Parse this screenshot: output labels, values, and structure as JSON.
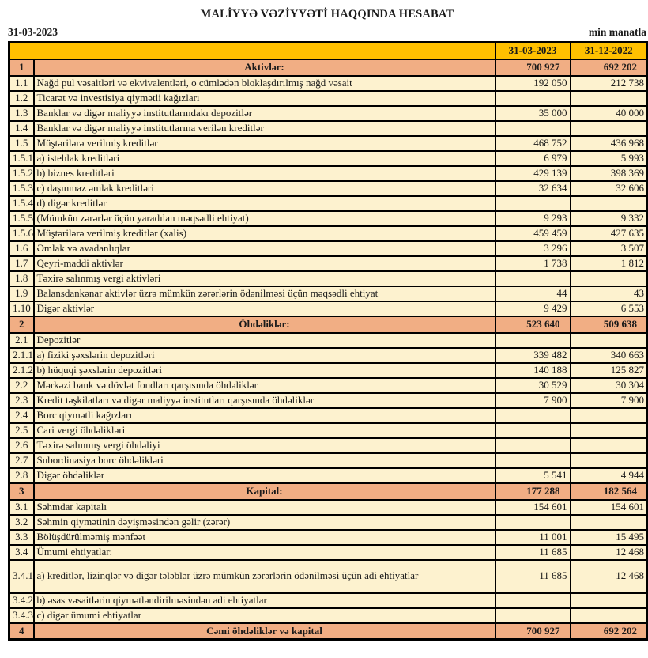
{
  "report": {
    "title": "MALİYYƏ VƏZİYYƏTİ HAQQINDA HESABAT",
    "date_label": "31-03-2023",
    "unit_label": "min manatla",
    "columns": [
      "31-03-2023",
      "31-12-2022"
    ],
    "colors": {
      "header_bg": "#FFC000",
      "section_bg": "#F1AE84",
      "row_bg": "#FDF2CF",
      "border": "#000000"
    },
    "rows": [
      {
        "no": "1",
        "label": "Aktivlər:",
        "v1": "700 927",
        "v2": "692 202",
        "type": "section"
      },
      {
        "no": "1.1",
        "label": "Nağd pul vəsaitləri və  ekvivalentləri, o cümlədən bloklaşdırılmış nağd vəsait",
        "v1": "192 050",
        "v2": "212 738",
        "type": "normal"
      },
      {
        "no": "1.2",
        "label": "Ticarət və investisiya qiymətli kağızları",
        "v1": "",
        "v2": "",
        "type": "normal"
      },
      {
        "no": "1.3",
        "label": "Banklar və digər maliyyə institutlarındakı depozitlər",
        "v1": "35 000",
        "v2": "40 000",
        "type": "normal"
      },
      {
        "no": "1.4",
        "label": "Banklar və digər maliyyə institutlarına verilən kreditlər",
        "v1": "",
        "v2": "",
        "type": "normal"
      },
      {
        "no": "1.5",
        "label": "Müştərilərə verilmiş kreditlər",
        "v1": "468 752",
        "v2": "436 968",
        "type": "normal"
      },
      {
        "no": "1.5.1",
        "label": "a) istehlak kreditləri",
        "v1": "6 979",
        "v2": "5 993",
        "type": "normal"
      },
      {
        "no": "1.5.2",
        "label": "b) biznes kreditləri",
        "v1": "429 139",
        "v2": "398 369",
        "type": "normal"
      },
      {
        "no": "1.5.3",
        "label": "c) daşınmaz əmlak kreditləri",
        "v1": "32 634",
        "v2": "32 606",
        "type": "normal"
      },
      {
        "no": "1.5.4",
        "label": "d) digər kreditlər",
        "v1": "",
        "v2": "",
        "type": "normal"
      },
      {
        "no": "1.5.5",
        "label": "(Mümkün zərərlər üçün yaradılan məqsədli ehtiyat)",
        "v1": "9 293",
        "v2": "9 332",
        "type": "normal"
      },
      {
        "no": "1.5.6",
        "label": "Müştərilərə verilmiş kreditlər (xalis)",
        "v1": "459 459",
        "v2": "427 635",
        "type": "normal"
      },
      {
        "no": "1.6",
        "label": "Əmlak və avadanlıqlar",
        "v1": "3 296",
        "v2": "3 507",
        "type": "normal"
      },
      {
        "no": "1.7",
        "label": "Qeyri-maddi aktivlər",
        "v1": "1 738",
        "v2": "1 812",
        "type": "normal"
      },
      {
        "no": "1.8",
        "label": "Təxirə salınmış vergi aktivləri",
        "v1": "",
        "v2": "",
        "type": "normal"
      },
      {
        "no": "1.9",
        "label": "Balansdankənar aktivlər üzrə mümkün zərərlərin ödənilməsi üçün məqsədli ehtiyat",
        "v1": "44",
        "v2": "43",
        "type": "normal"
      },
      {
        "no": "1.10",
        "label": "Digər aktivlər",
        "v1": "9 429",
        "v2": "6 553",
        "type": "normal"
      },
      {
        "no": "2",
        "label": "Öhdəliklər:",
        "v1": "523 640",
        "v2": "509 638",
        "type": "section"
      },
      {
        "no": "2.1",
        "label": "Depozitlər",
        "v1": "",
        "v2": "",
        "type": "normal"
      },
      {
        "no": "2.1.1",
        "label": "a) fiziki şəxslərin depozitləri",
        "v1": "339 482",
        "v2": "340 663",
        "type": "normal"
      },
      {
        "no": "2.1.2",
        "label": "b) hüquqi şəxslərin depozitləri",
        "v1": "140 188",
        "v2": "125 827",
        "type": "normal"
      },
      {
        "no": "2.2",
        "label": "Mərkəzi bank və dövlət fondları qarşısında öhdəliklər",
        "v1": "30 529",
        "v2": "30 304",
        "type": "normal"
      },
      {
        "no": "2.3",
        "label": "Kredit təşkilatları və digər maliyyə institutları qarşısında öhdəliklər",
        "v1": "7 900",
        "v2": "7 900",
        "type": "normal"
      },
      {
        "no": "2.4",
        "label": "Borc qiymətli kağızları",
        "v1": "",
        "v2": "",
        "type": "normal"
      },
      {
        "no": "2.5",
        "label": "Cari vergi öhdəlikləri",
        "v1": "",
        "v2": "",
        "type": "normal"
      },
      {
        "no": "2.6",
        "label": "Təxirə salınmış vergi öhdəliyi",
        "v1": "",
        "v2": "",
        "type": "normal"
      },
      {
        "no": "2.7",
        "label": "Subordinasiya borc öhdəlikləri",
        "v1": "",
        "v2": "",
        "type": "normal"
      },
      {
        "no": "2.8",
        "label": "Digər öhdəliklər",
        "v1": "5 541",
        "v2": "4 944",
        "type": "normal"
      },
      {
        "no": "3",
        "label": "Kapital:",
        "v1": "177 288",
        "v2": "182 564",
        "type": "section"
      },
      {
        "no": "3.1",
        "label": "Səhmdar kapitalı",
        "v1": "154 601",
        "v2": "154 601",
        "type": "normal"
      },
      {
        "no": "3.2",
        "label": "Səhmin qiymətinin dəyişməsindən gəlir (zərər)",
        "v1": "",
        "v2": "",
        "type": "normal"
      },
      {
        "no": "3.3",
        "label": "Bölüşdürülməmiş mənfəət",
        "v1": "11 001",
        "v2": "15 495",
        "type": "normal"
      },
      {
        "no": "3.4",
        "label": "Ümumi ehtiyatlar:",
        "v1": "11 685",
        "v2": "12 468",
        "type": "normal"
      },
      {
        "no": "3.4.1",
        "label": "a) kreditlər, lizinqlər və digər tələblər üzrə mümkün zərərlərin ödənilməsi üçün adi ehtiyatlar",
        "v1": "11 685",
        "v2": "12 468",
        "type": "tall"
      },
      {
        "no": "3.4.2",
        "label": "b) əsas vəsaitlərin qiymətləndirilməsindən adi ehtiyatlar",
        "v1": "",
        "v2": "",
        "type": "normal"
      },
      {
        "no": "3.4.3",
        "label": "c) digər ümumi ehtiyatlar",
        "v1": "",
        "v2": "",
        "type": "normal"
      },
      {
        "no": "4",
        "label": "Cəmi öhdəliklər və kapital",
        "v1": "700 927",
        "v2": "692 202",
        "type": "section"
      }
    ]
  }
}
